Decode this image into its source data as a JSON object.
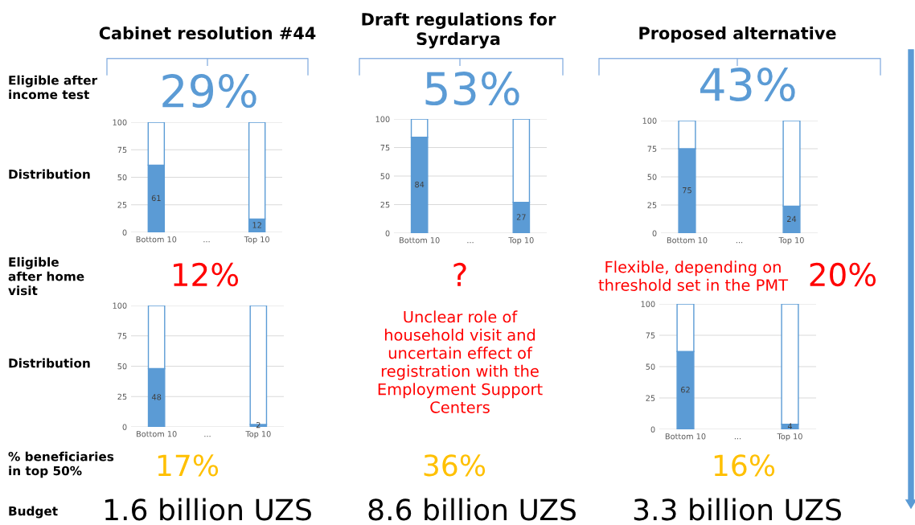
{
  "chart_data": [
    {
      "type": "other",
      "annotations": [
        "Cabinet resolution #44",
        "Draft regulations for\nSyrdarya",
        "Proposed alternative",
        "Eligible after\nincome test",
        "Distribution",
        "Eligible\nafter home\nvisit",
        "Distribution",
        "% beneficiaries\nin top 50%",
        "Budget",
        "29%",
        "53%",
        "43%",
        "12%",
        "?",
        "Unclear role of\nhousehold visit and\nuncertain effect of\nregistration with the\nEmployment Support\nCenters",
        "Flexible, depending on\nthreshold set in the PMT",
        "20%",
        "17%",
        "36%",
        "16%",
        "1.6 billion UZS",
        "8.6 billion UZS",
        "3.3 billion UZS"
      ]
    },
    {
      "type": "bar",
      "stacked": true,
      "categories": [
        "Bottom 10",
        "...",
        "Top 10"
      ],
      "series": [
        {
          "color": "#5b9bd5",
          "values": [
            61,
            null,
            12
          ],
          "value_labels": [
            "61",
            null,
            "12"
          ]
        },
        {
          "color": "#ffffff",
          "values": [
            39,
            null,
            88
          ]
        }
      ],
      "ylim": [
        0,
        100
      ],
      "yticks": [
        0,
        25,
        50,
        75,
        100
      ],
      "grid": "y"
    },
    {
      "type": "bar",
      "stacked": true,
      "categories": [
        "Bottom 10",
        "...",
        "Top 10"
      ],
      "series": [
        {
          "color": "#5b9bd5",
          "values": [
            84,
            null,
            27
          ],
          "value_labels": [
            "84",
            null,
            "27"
          ]
        },
        {
          "color": "#ffffff",
          "values": [
            16,
            null,
            73
          ]
        }
      ],
      "ylim": [
        0,
        100
      ],
      "yticks": [
        0,
        25,
        50,
        75,
        100
      ],
      "grid": "y"
    },
    {
      "type": "bar",
      "stacked": true,
      "categories": [
        "Bottom 10",
        "...",
        "Top 10"
      ],
      "series": [
        {
          "color": "#5b9bd5",
          "values": [
            75,
            null,
            24
          ],
          "value_labels": [
            "75",
            null,
            "24"
          ]
        },
        {
          "color": "#ffffff",
          "values": [
            25,
            null,
            76
          ]
        }
      ],
      "ylim": [
        0,
        100
      ],
      "yticks": [
        0,
        25,
        50,
        75,
        100
      ],
      "grid": "y"
    },
    {
      "type": "bar",
      "stacked": true,
      "categories": [
        "Bottom 10",
        "...",
        "Top 10"
      ],
      "series": [
        {
          "color": "#5b9bd5",
          "values": [
            48,
            null,
            2
          ],
          "value_labels": [
            "48",
            null,
            "2"
          ]
        },
        {
          "color": "#ffffff",
          "values": [
            52,
            null,
            98
          ]
        }
      ],
      "ylim": [
        0,
        100
      ],
      "yticks": [
        0,
        25,
        50,
        75,
        100
      ],
      "grid": "y"
    },
    {
      "type": "bar",
      "stacked": true,
      "categories": [
        "Bottom 10",
        "...",
        "Top 10"
      ],
      "series": [
        {
          "color": "#5b9bd5",
          "values": [
            62,
            null,
            4
          ],
          "value_labels": [
            "62",
            null,
            "4"
          ]
        },
        {
          "color": "#ffffff",
          "values": [
            38,
            null,
            96
          ]
        }
      ],
      "ylim": [
        0,
        100
      ],
      "yticks": [
        0,
        25,
        50,
        75,
        100
      ],
      "grid": "y"
    }
  ]
}
